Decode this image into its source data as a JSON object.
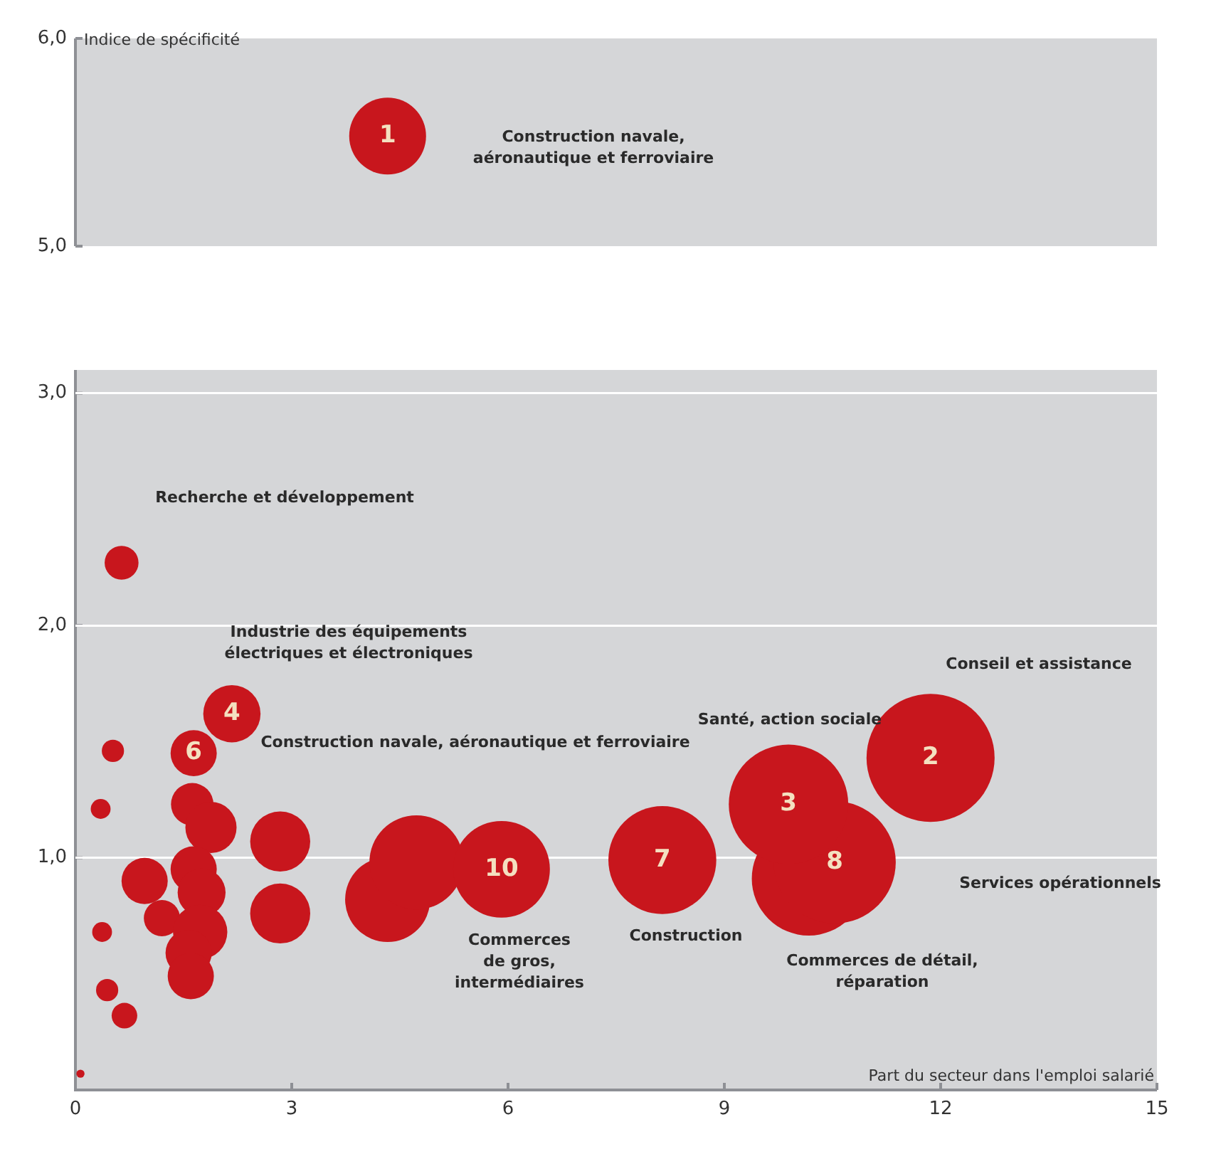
{
  "chart_data": [
    {
      "type": "bubble",
      "ylabel": "Indice de spécificité",
      "xlim": [
        0,
        15
      ],
      "ylim": [
        5,
        6
      ],
      "yticks": [
        {
          "value": 5,
          "label": "5,0"
        },
        {
          "value": 6,
          "label": "6,0"
        }
      ],
      "tick_labels": "y",
      "annotations": [
        "Construction navale,\naéronautique et ferroviaire",
        {
          "text": "1",
          "x": 4.33,
          "y": 5.53
        }
      ],
      "series": [
        {
          "color": "#c8161d",
          "x": [
            4.33
          ],
          "values": [
            5.53
          ]
        }
      ]
    },
    {
      "type": "bubble",
      "xlabel": "Part du secteur dans l'emploi salarié",
      "xlim": [
        0,
        15
      ],
      "xticks": [
        0,
        3,
        6,
        9,
        12,
        15
      ],
      "ylim": [
        0,
        3.1
      ],
      "yticks": [
        {
          "value": 1,
          "label": "1,0"
        },
        {
          "value": 2,
          "label": "2,0"
        },
        {
          "value": 3,
          "label": "3,0"
        }
      ],
      "grid": "y",
      "annotations": [
        "Recherche et développement",
        "Industrie des équipements\nélectriques et électroniques",
        "Construction navale, aéronautique et ferroviaire",
        "Santé, action sociale",
        "Conseil et assistance",
        "Services opérationnels",
        "Construction",
        "Commerces\nde gros,\nintermédiaires",
        "Commerces de détail,\nréparation",
        {
          "text": "8",
          "x": 10.53,
          "y": 0.98
        },
        {
          "text": "3",
          "x": 9.89,
          "y": 1.23
        },
        {
          "text": "2",
          "x": 11.86,
          "y": 1.43
        },
        {
          "text": "7",
          "x": 8.14,
          "y": 0.99
        },
        {
          "text": "10",
          "x": 5.91,
          "y": 0.95
        },
        {
          "text": "4",
          "x": 2.17,
          "y": 1.62
        },
        {
          "text": "6",
          "x": 1.64,
          "y": 1.45
        }
      ],
      "series": [
        {
          "color": "#c8161d",
          "x": [
            10.17,
            10.53,
            9.89,
            11.86,
            8.14,
            4.33,
            4.73,
            5.91,
            2.17,
            1.64,
            0.64,
            0.52,
            0.35,
            1.62,
            1.88,
            2.84,
            0.96,
            1.64,
            1.75,
            2.84,
            1.2,
            1.73,
            1.57,
            1.6,
            0.37,
            0.44,
            0.68,
            0.07
          ],
          "values": [
            0.91,
            0.98,
            1.23,
            1.43,
            0.99,
            0.82,
            0.98,
            0.95,
            1.62,
            1.45,
            2.27,
            1.46,
            1.21,
            1.23,
            1.13,
            1.07,
            0.9,
            0.95,
            0.85,
            0.76,
            0.74,
            0.68,
            0.59,
            0.49,
            0.68,
            0.43,
            0.32,
            0.07
          ],
          "sizes": [
            0.79,
            0.91,
            0.87,
            1,
            0.71,
            0.44,
            0.54,
            0.57,
            0.2,
            0.13,
            0.07,
            0.03,
            0.024,
            0.11,
            0.16,
            0.22,
            0.13,
            0.13,
            0.14,
            0.22,
            0.08,
            0.18,
            0.13,
            0.13,
            0.024,
            0.03,
            0.04,
            0.004
          ]
        }
      ]
    }
  ]
}
